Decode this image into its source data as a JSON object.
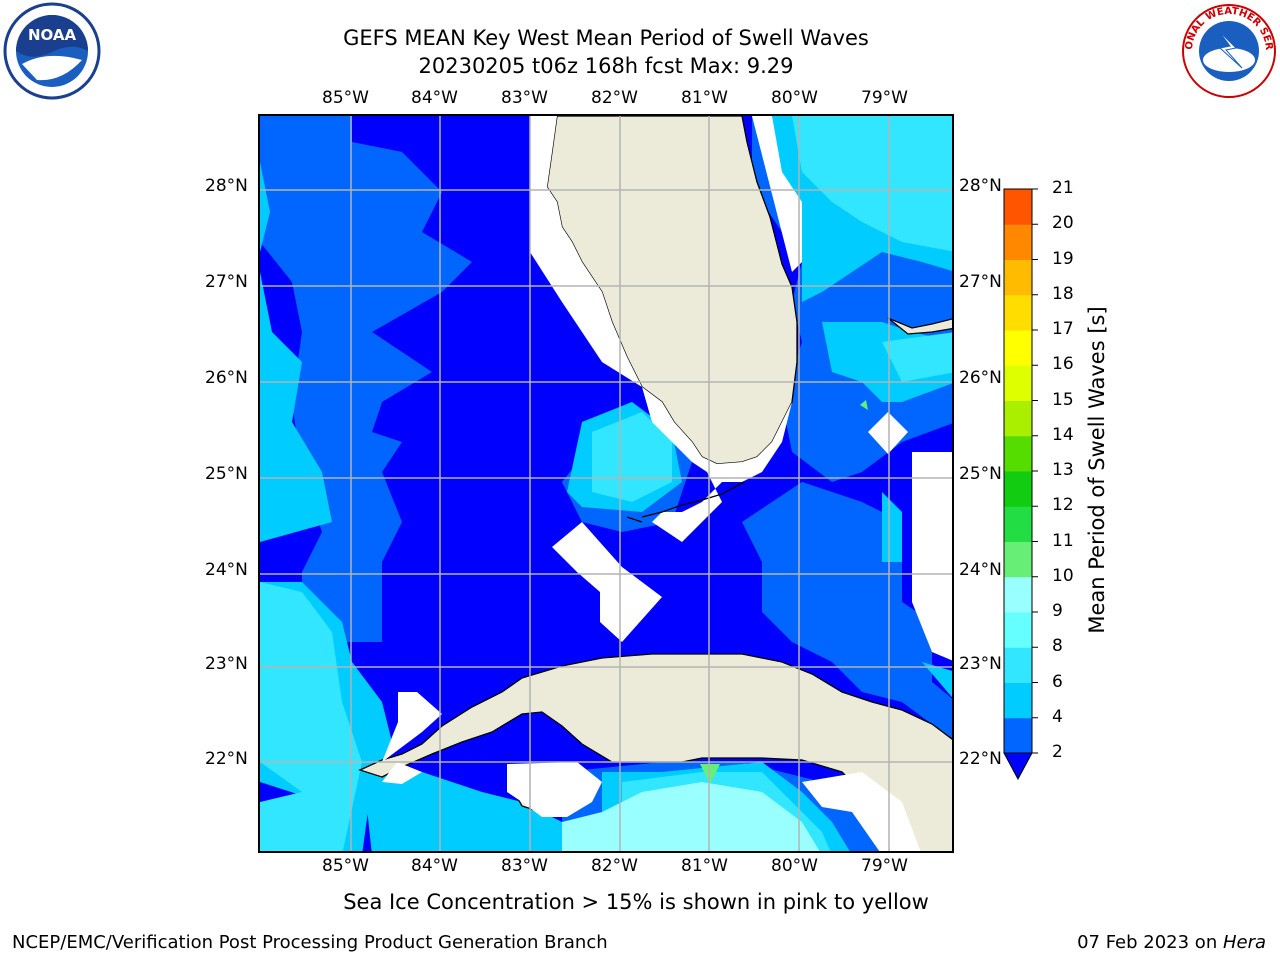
{
  "title_line1": "GEFS MEAN Key West Mean Period of Swell Waves",
  "title_line2": "20230205 t06z 168h fcst   Max: 9.29",
  "lon_labels": [
    "85°W",
    "84°W",
    "83°W",
    "82°W",
    "81°W",
    "80°W",
    "79°W"
  ],
  "lat_labels": [
    "28°N",
    "27°N",
    "26°N",
    "25°N",
    "24°N",
    "23°N",
    "22°N"
  ],
  "colorbar": {
    "label": "Mean Period of Swell Waves [s]",
    "ticks": [
      "2",
      "4",
      "6",
      "8",
      "9",
      "10",
      "11",
      "12",
      "13",
      "14",
      "15",
      "16",
      "17",
      "18",
      "19",
      "20",
      "21"
    ],
    "colors": [
      "#0066ff",
      "#00ccff",
      "#33e6ff",
      "#66ffff",
      "#99ffff",
      "#66ee77",
      "#22dd44",
      "#11cc11",
      "#55dd00",
      "#aaee00",
      "#ddff00",
      "#ffff00",
      "#ffdd00",
      "#ffbb00",
      "#ff8800",
      "#ff5500",
      "#ff2200",
      "#ff0000"
    ],
    "under_color": "#0000ff"
  },
  "legend_note": "Sea Ice Concentration > 15% is shown in pink to yellow",
  "footer_left": "NCEP/EMC/Verification Post Processing Product Generation Branch",
  "footer_date": "07 Feb 2023 on ",
  "footer_host": "Hera",
  "logos": {
    "left": "NOAA",
    "right": "NATIONAL WEATHER SERVICE"
  },
  "colors": {
    "land": "#ecead8",
    "period_lt2": "#0000ff",
    "period_2_4": "#0066ff",
    "period_4_6": "#00ccff",
    "period_6_8": "#33e6ff",
    "period_8_9": "#99ffff",
    "period_9_10": "#66ee77"
  }
}
